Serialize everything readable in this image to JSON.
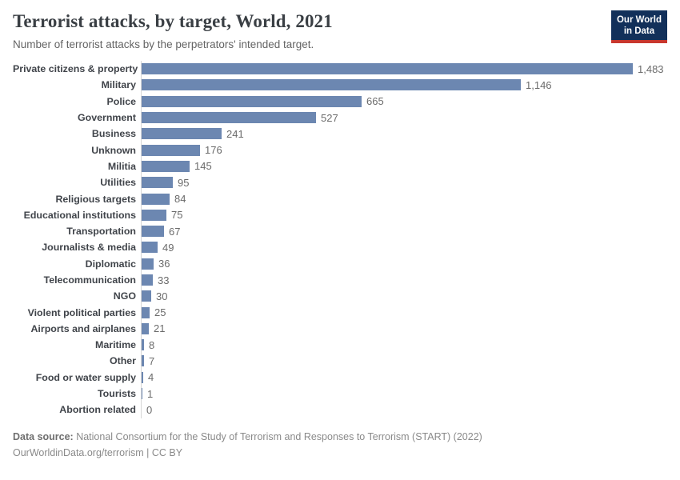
{
  "header": {
    "title": "Terrorist attacks, by target, World, 2021",
    "subtitle": "Number of terrorist attacks by the perpetrators' intended target.",
    "logo": {
      "line1": "Our World",
      "line2": "in Data"
    }
  },
  "chart_data": {
    "type": "bar",
    "orientation": "horizontal",
    "title": "Terrorist attacks, by target, World, 2021",
    "xlabel": "",
    "ylabel": "",
    "xlim": [
      0,
      1483
    ],
    "grid": false,
    "legend": "none",
    "bar_color": "#6c87b1",
    "axis_color": "#d7d7d7",
    "categories": [
      "Private citizens & property",
      "Military",
      "Police",
      "Government",
      "Business",
      "Unknown",
      "Militia",
      "Utilities",
      "Religious targets",
      "Educational institutions",
      "Transportation",
      "Journalists & media",
      "Diplomatic",
      "Telecommunication",
      "NGO",
      "Violent political parties",
      "Airports and airplanes",
      "Maritime",
      "Other",
      "Food or water supply",
      "Tourists",
      "Abortion related"
    ],
    "values": [
      1483,
      1146,
      665,
      527,
      241,
      176,
      145,
      95,
      84,
      75,
      67,
      49,
      36,
      33,
      30,
      25,
      21,
      8,
      7,
      4,
      1,
      0
    ],
    "value_labels": [
      "1,483",
      "1,146",
      "665",
      "527",
      "241",
      "176",
      "145",
      "95",
      "84",
      "75",
      "67",
      "49",
      "36",
      "33",
      "30",
      "25",
      "21",
      "8",
      "7",
      "4",
      "1",
      "0"
    ]
  },
  "footer": {
    "source_label": "Data source:",
    "source_text": " National Consortium for the Study of Terrorism and Responses to Terrorism (START) (2022)",
    "link_text": "OurWorldinData.org/terrorism",
    "separator": " | ",
    "license": "CC BY"
  },
  "colors": {
    "bar": "#6c87b1",
    "logo_bg": "#12305a",
    "logo_accent": "#c8372d"
  }
}
